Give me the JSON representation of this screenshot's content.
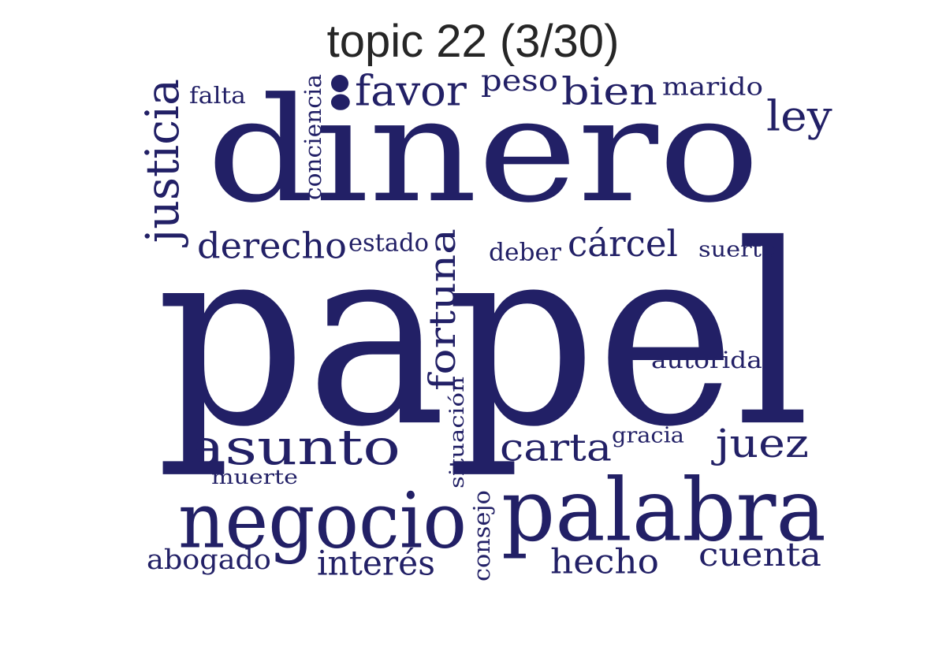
{
  "title": "topic 22 (3/30)",
  "word_color": "#222066",
  "words": [
    {
      "id": "papel",
      "text": "papel"
    },
    {
      "id": "dinero",
      "text": "dinero"
    },
    {
      "id": "palabra",
      "text": "palabra"
    },
    {
      "id": "negocio",
      "text": "negocio"
    },
    {
      "id": "asunto",
      "text": "asunto"
    },
    {
      "id": "justicia",
      "text": "justicia"
    },
    {
      "id": "fortuna",
      "text": "fortuna"
    },
    {
      "id": "favor",
      "text": "favor"
    },
    {
      "id": "bien",
      "text": "bien"
    },
    {
      "id": "ley",
      "text": "ley"
    },
    {
      "id": "derecho",
      "text": "derecho"
    },
    {
      "id": "cárcel",
      "text": "cárcel"
    },
    {
      "id": "carta",
      "text": "carta"
    },
    {
      "id": "juez",
      "text": "juez"
    },
    {
      "id": "interés",
      "text": "interés"
    },
    {
      "id": "hecho",
      "text": "hecho"
    },
    {
      "id": "cuenta",
      "text": "cuenta"
    },
    {
      "id": "peso",
      "text": "peso"
    },
    {
      "id": "marido",
      "text": "marido"
    },
    {
      "id": "conciencia",
      "text": "conciencia"
    },
    {
      "id": "falta",
      "text": "falta"
    },
    {
      "id": "estado",
      "text": "estado"
    },
    {
      "id": "deber",
      "text": "deber"
    },
    {
      "id": "suerte",
      "text": "suerte"
    },
    {
      "id": "autoridad",
      "text": "autoridad"
    },
    {
      "id": "situación",
      "text": "situación"
    },
    {
      "id": "gracia",
      "text": "gracia"
    },
    {
      "id": "muerte",
      "text": "muerte"
    },
    {
      "id": "consejo",
      "text": "consejo"
    },
    {
      "id": "abogado",
      "text": "abogado"
    }
  ]
}
